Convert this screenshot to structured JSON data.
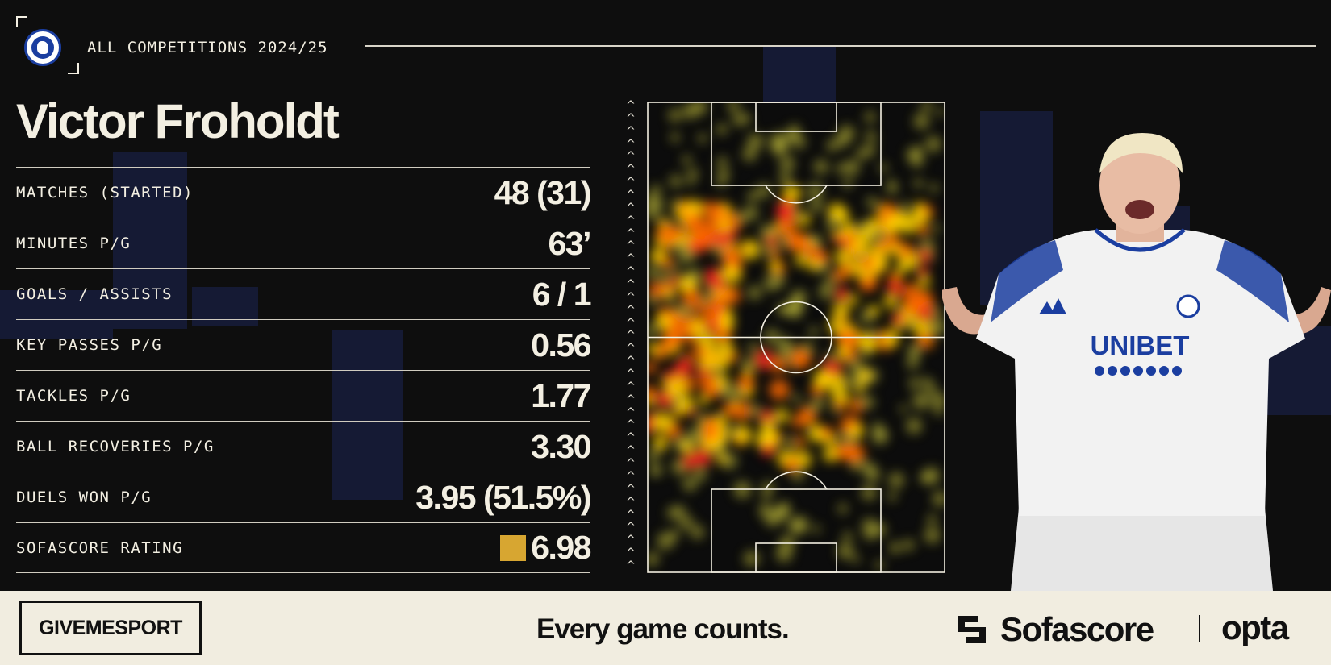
{
  "header": {
    "crest_icon": "fc-copenhagen-crest-icon",
    "competition": "ALL COMPETITIONS 2024/25"
  },
  "player": {
    "name": "Victor Froholdt"
  },
  "stats": [
    {
      "label": "MATCHES (STARTED)",
      "value": "48 (31)"
    },
    {
      "label": "MINUTES P/G",
      "value": "63’"
    },
    {
      "label": "GOALS / ASSISTS",
      "value": "6 / 1"
    },
    {
      "label": "KEY PASSES P/G",
      "value": "0.56"
    },
    {
      "label": "TACKLES P/G",
      "value": "1.77"
    },
    {
      "label": "BALL RECOVERIES P/G",
      "value": "3.30"
    },
    {
      "label": "DUELS WON P/G",
      "value": "3.95 (51.5%)"
    },
    {
      "label": "SOFASCORE RATING",
      "value": "6.98",
      "badge_color": "#d7a631"
    }
  ],
  "heatmap": {
    "attack_direction": "up",
    "colors": {
      "low": "#c8c33a",
      "mid": "#ffd400",
      "high": "#ff6a00",
      "peak": "#ff1e1e"
    }
  },
  "jersey": {
    "sponsor": "UNIBET"
  },
  "footer": {
    "publisher": "GIVEMESPORT",
    "tagline": "Every game counts.",
    "sofascore": "Sofascore",
    "opta": "opta"
  },
  "colors": {
    "background": "#0e0e0e",
    "text": "#f3efe2",
    "footer_bg": "#f1ede0",
    "club_blue": "#1b3ea0"
  }
}
